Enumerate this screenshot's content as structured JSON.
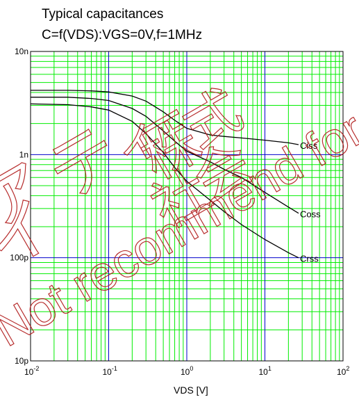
{
  "chart_data": {
    "type": "line",
    "title": "Typical capacitances",
    "subtitle": "C=f(VDS):VGS=0V,f=1MHz",
    "xlabel": "VDS [V]",
    "ylabel": "",
    "xscale": "log",
    "yscale": "log",
    "xlim": [
      0.01,
      100
    ],
    "ylim": [
      1e-11,
      1e-08
    ],
    "x_ticks": [
      {
        "base": "10",
        "exp": "-2"
      },
      {
        "base": "10",
        "exp": "-1"
      },
      {
        "base": "10",
        "exp": "0"
      },
      {
        "base": "10",
        "exp": "1"
      },
      {
        "base": "10",
        "exp": "2"
      }
    ],
    "y_ticks": [
      "10p",
      "100p",
      "1n",
      "10n"
    ],
    "grid": true,
    "series": [
      {
        "name": "Ciss",
        "x": [
          0.01,
          0.03,
          0.06,
          0.1,
          0.2,
          0.3,
          0.5,
          0.7,
          1,
          2,
          3,
          5,
          10,
          20,
          27
        ],
        "values": [
          4.2e-09,
          4.2e-09,
          4.15e-09,
          4.05e-09,
          3.7e-09,
          3.3e-09,
          2.6e-09,
          2.15e-09,
          1.8e-09,
          1.55e-09,
          1.5e-09,
          1.45e-09,
          1.38e-09,
          1.3e-09,
          1.25e-09
        ]
      },
      {
        "name": "Coss",
        "x": [
          0.01,
          0.03,
          0.06,
          0.1,
          0.2,
          0.3,
          0.5,
          0.7,
          1,
          2,
          3,
          5,
          10,
          20,
          27
        ],
        "values": [
          3.6e-09,
          3.6e-09,
          3.5e-09,
          3.35e-09,
          2.8e-09,
          2.35e-09,
          1.7e-09,
          1.35e-09,
          1.08e-09,
          8.5e-10,
          7.2e-10,
          6e-10,
          4.3e-10,
          3.1e-10,
          2.7e-10
        ]
      },
      {
        "name": "Crss",
        "x": [
          0.01,
          0.03,
          0.06,
          0.1,
          0.2,
          0.3,
          0.5,
          0.7,
          1,
          2,
          3,
          5,
          10,
          20,
          27
        ],
        "values": [
          3.1e-09,
          3.05e-09,
          2.9e-09,
          2.7e-09,
          2.1e-09,
          1.6e-09,
          1.05e-09,
          7.5e-10,
          5.5e-10,
          3.6e-10,
          2.8e-10,
          2.1e-10,
          1.5e-10,
          1.12e-10,
          1e-10
        ]
      }
    ]
  },
  "colors": {
    "major_grid": "#0000cc",
    "minor_grid": "#00ee00",
    "curves": "#000000",
    "watermark": "#b01818"
  },
  "watermark_text": [
    "ア",
    "イ",
    "テ",
    "ィ",
    "ー",
    "株",
    "式",
    "会",
    "社",
    "Not recommend for new design."
  ]
}
